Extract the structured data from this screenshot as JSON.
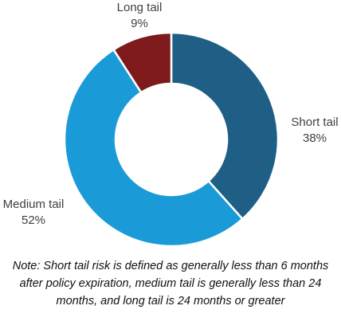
{
  "chart_data": {
    "type": "pie",
    "variant": "donut",
    "categories": [
      "Short tail",
      "Medium tail",
      "Long tail"
    ],
    "values": [
      38,
      52,
      9
    ],
    "value_labels": [
      "38%",
      "52%",
      "9%"
    ],
    "colors": [
      "#1f5f86",
      "#1a9bd7",
      "#7f1a1c"
    ],
    "title": "",
    "legend": "none",
    "note": "Note: Short tail risk is defined as generally less than 6 months after policy expiration, medium tail is generally less than 24 months, and long tail is 24 months or greater"
  }
}
